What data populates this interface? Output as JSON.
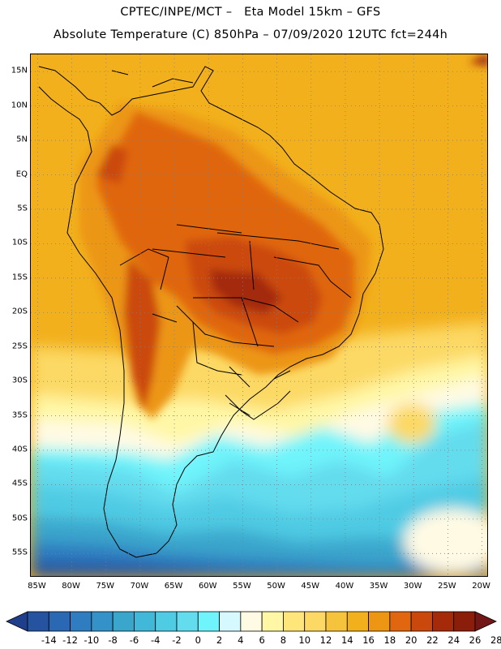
{
  "title_line1": "CPTEC/INPE/MCT –   Eta Model 15km – GFS",
  "title_line2": "Absolute Temperature (C) 850hPa – 07/09/2020 12UTC fct=244h",
  "map": {
    "lon_range": [
      -86,
      -19
    ],
    "lat_range": [
      17.5,
      -58.5
    ],
    "lat_ticks": [
      "15N",
      "10N",
      "5N",
      "EQ",
      "5S",
      "10S",
      "15S",
      "20S",
      "25S",
      "30S",
      "35S",
      "40S",
      "45S",
      "50S",
      "55S"
    ],
    "lon_ticks": [
      "85W",
      "80W",
      "75W",
      "70W",
      "65W",
      "60W",
      "55W",
      "50W",
      "45W",
      "40W",
      "35W",
      "30W",
      "25W",
      "20W"
    ],
    "grid": "dotted"
  },
  "legend": {
    "labels": [
      "-14",
      "-12",
      "-10",
      "-8",
      "-6",
      "-4",
      "-2",
      "0",
      "2",
      "4",
      "6",
      "8",
      "10",
      "12",
      "14",
      "16",
      "18",
      "20",
      "22",
      "24",
      "26",
      "28"
    ],
    "colors": [
      "#1f3e8c",
      "#2553a0",
      "#2a68b4",
      "#2f7dc0",
      "#3592c8",
      "#3ba6cc",
      "#42b8d8",
      "#4fcbe4",
      "#63dcee",
      "#6ff4fb",
      "#d6f8ff",
      "#fffae4",
      "#fff7a5",
      "#ffe67a",
      "#fcd965",
      "#f6c43c",
      "#f2b01c",
      "#ec9614",
      "#e06610",
      "#cb480c",
      "#a42a0a",
      "#8a1e0a",
      "#731616"
    ]
  }
}
